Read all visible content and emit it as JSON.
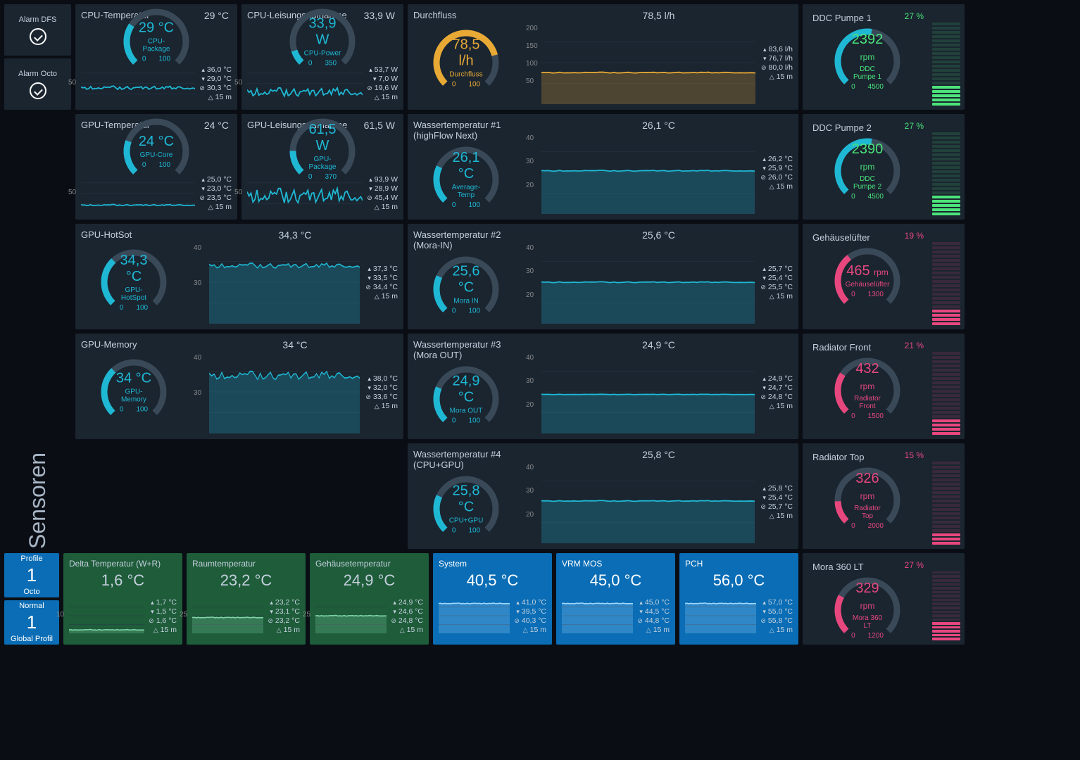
{
  "sidebar": {
    "title": "Sensoren",
    "alarms": [
      {
        "label": "Alarm DFS",
        "ok": true
      },
      {
        "label": "Alarm Octo",
        "ok": true
      }
    ]
  },
  "colors": {
    "cyan": "#1fb8d4",
    "cyan_dark": "#0d5c6b",
    "orange": "#e8a935",
    "green": "#4be37a",
    "pink": "#e8477e",
    "track": "#3a4958",
    "panel_bg": "#1a2530",
    "grid": "#2a3845"
  },
  "gauge": {
    "start_deg": 135,
    "sweep_deg": 270,
    "radius": 45,
    "stroke": 9
  },
  "panels": {
    "cpu_t": {
      "title": "CPU-Temperatur",
      "top": "29 °C",
      "gauge": {
        "value": "29 °C",
        "sub": "CPU-Package",
        "min": 0,
        "max": 100,
        "fill": 0.29,
        "color": "cyan"
      },
      "chart": {
        "ylabel": "50",
        "line_y": 0.6,
        "noise": 0.08,
        "color": "cyan"
      },
      "stats": {
        "max": "36,0 °C",
        "min": "29,0 °C",
        "avg": "30,3 °C",
        "time": "15 m"
      }
    },
    "cpu_p": {
      "title": "CPU-Leisungsaufnahme",
      "top": "33,9 W",
      "gauge": {
        "value": "33,9 W",
        "sub": "CPU-Power",
        "min": 0,
        "max": 350,
        "fill": 0.1,
        "color": "cyan"
      },
      "chart": {
        "ylabel": "50",
        "line_y": 0.7,
        "noise": 0.2,
        "color": "cyan"
      },
      "stats": {
        "max": "53,7 W",
        "min": "7,0 W",
        "avg": "19,6 W",
        "time": "15 m"
      }
    },
    "gpu_t": {
      "title": "GPU-Temperatur",
      "top": "24 °C",
      "gauge": {
        "value": "24 °C",
        "sub": "GPU-Core",
        "min": 0,
        "max": 100,
        "fill": 0.24,
        "color": "cyan"
      },
      "chart": {
        "ylabel": "50",
        "line_y": 0.78,
        "noise": 0.03,
        "color": "cyan"
      },
      "stats": {
        "max": "25,0 °C",
        "min": "23,0 °C",
        "avg": "23,5 °C",
        "time": "15 m"
      }
    },
    "gpu_p": {
      "title": "GPU-Leisungsaufnahme",
      "top": "61,5 W",
      "gauge": {
        "value": "61,5 W",
        "sub": "GPU-Package",
        "min": 0,
        "max": 370,
        "fill": 0.17,
        "color": "cyan"
      },
      "chart": {
        "ylabel": "50",
        "line_y": 0.55,
        "noise": 0.35,
        "color": "cyan"
      },
      "stats": {
        "max": "93,9 W",
        "min": "28,9 W",
        "avg": "45,4 W",
        "time": "15 m"
      }
    },
    "hotspot": {
      "title": "GPU-HotSot",
      "top": "34,3 °C",
      "gauge": {
        "value": "34,3 °C",
        "sub": "GPU-HotSpot",
        "min": 0,
        "max": 100,
        "fill": 0.34,
        "color": "cyan"
      },
      "chart": {
        "yticks": [
          "40",
          "30"
        ],
        "line_y": 0.3,
        "noise": 0.06,
        "color": "cyan",
        "area": true
      },
      "stats": {
        "max": "37,3 °C",
        "min": "33,5 °C",
        "avg": "34,4 °C",
        "time": "15 m"
      }
    },
    "memory": {
      "title": "GPU-Memory",
      "top": "34 °C",
      "gauge": {
        "value": "34 °C",
        "sub": "GPU-Memory",
        "min": 0,
        "max": 100,
        "fill": 0.34,
        "color": "cyan"
      },
      "chart": {
        "yticks": [
          "40",
          "30"
        ],
        "line_y": 0.3,
        "noise": 0.1,
        "color": "cyan",
        "area": true
      },
      "stats": {
        "max": "38,0 °C",
        "min": "32,0 °C",
        "avg": "33,6 °C",
        "time": "15 m"
      }
    },
    "flow": {
      "title": "Durchfluss",
      "top": "78,5 l/h",
      "gauge": {
        "value": "78,5 l/h",
        "sub": "Durchfluss",
        "min": 0,
        "max": 100,
        "fill": 0.78,
        "color": "orange",
        "value_color": "orange"
      },
      "chart": {
        "yticks": [
          "200",
          "150",
          "100",
          "50"
        ],
        "line_y": 0.62,
        "noise": 0.01,
        "color": "orange",
        "area": true
      },
      "stats": {
        "max": "83,6 l/h",
        "min": "76,7 l/h",
        "avg": "80,0 l/h",
        "time": "15 m"
      }
    },
    "wt1": {
      "title": "Wassertemperatur #1 (highFlow Next)",
      "top": "26,1 °C",
      "gauge": {
        "value": "26,1 °C",
        "sub": "Average-Temp",
        "min": 0,
        "max": 100,
        "fill": 0.26,
        "color": "cyan"
      },
      "chart": {
        "yticks": [
          "40",
          "30",
          "20"
        ],
        "line_y": 0.48,
        "noise": 0.01,
        "color": "cyan",
        "area": true
      },
      "stats": {
        "max": "26,2 °C",
        "min": "25,9 °C",
        "avg": "26,0 °C",
        "time": "15 m"
      }
    },
    "wt2": {
      "title": "Wassertemperatur #2 (Mora-IN)",
      "top": "25,6 °C",
      "gauge": {
        "value": "25,6 °C",
        "sub": "Mora IN",
        "min": 0,
        "max": 100,
        "fill": 0.26,
        "color": "cyan"
      },
      "chart": {
        "yticks": [
          "40",
          "30",
          "20"
        ],
        "line_y": 0.5,
        "noise": 0.01,
        "color": "cyan",
        "area": true
      },
      "stats": {
        "max": "25,7 °C",
        "min": "25,4 °C",
        "avg": "25,5 °C",
        "time": "15 m"
      }
    },
    "wt3": {
      "title": "Wassertemperatur #3 (Mora OUT)",
      "top": "24,9 °C",
      "gauge": {
        "value": "24,9 °C",
        "sub": "Mora OUT",
        "min": 0,
        "max": 100,
        "fill": 0.25,
        "color": "cyan"
      },
      "chart": {
        "yticks": [
          "40",
          "30",
          "20"
        ],
        "line_y": 0.53,
        "noise": 0.005,
        "color": "cyan",
        "area": true
      },
      "stats": {
        "max": "24,9 °C",
        "min": "24,7 °C",
        "avg": "24,8 °C",
        "time": "15 m"
      }
    },
    "wt4": {
      "title": "Wassertemperatur #4 (CPU+GPU)",
      "top": "25,8 °C",
      "gauge": {
        "value": "25,8 °C",
        "sub": "CPU+GPU",
        "min": 0,
        "max": 100,
        "fill": 0.26,
        "color": "cyan"
      },
      "chart": {
        "yticks": [
          "40",
          "30",
          "20"
        ],
        "line_y": 0.49,
        "noise": 0.01,
        "color": "cyan",
        "area": true
      },
      "stats": {
        "max": "25,8 °C",
        "min": "25,4 °C",
        "avg": "25,7 °C",
        "time": "15 m"
      }
    }
  },
  "fans": {
    "ddc1": {
      "title": "DDC Pumpe 1",
      "pct": "27 %",
      "gauge": {
        "value": "2392",
        "unit": "rpm",
        "sub": "DDC Pumpe 1",
        "min": 0,
        "max": 4500,
        "fill": 0.53,
        "color": "cyan",
        "value_color": "green"
      },
      "bars": {
        "count": 20,
        "lit": 5,
        "color": "green"
      }
    },
    "ddc2": {
      "title": "DDC Pumpe 2",
      "pct": "27 %",
      "gauge": {
        "value": "2390",
        "unit": "rpm",
        "sub": "DDC Pumpe 2",
        "min": 0,
        "max": 4500,
        "fill": 0.53,
        "color": "cyan",
        "value_color": "green"
      },
      "bars": {
        "count": 20,
        "lit": 5,
        "color": "green"
      }
    },
    "geh": {
      "title": "Gehäuselüfter",
      "pct": "19 %",
      "gauge": {
        "value": "465",
        "unit": "rpm",
        "sub": "Gehäuselüfter",
        "min": 0,
        "max": 1300,
        "fill": 0.36,
        "color": "pink",
        "value_color": "pink"
      },
      "bars": {
        "count": 20,
        "lit": 4,
        "color": "pink"
      }
    },
    "rf": {
      "title": "Radiator Front",
      "pct": "21 %",
      "gauge": {
        "value": "432",
        "unit": "rpm",
        "sub": "Radiator Front",
        "min": 0,
        "max": 1500,
        "fill": 0.29,
        "color": "pink",
        "value_color": "pink"
      },
      "bars": {
        "count": 20,
        "lit": 4,
        "color": "pink"
      }
    },
    "rt": {
      "title": "Radiator Top",
      "pct": "15 %",
      "gauge": {
        "value": "326",
        "unit": "rpm",
        "sub": "Radiator Top",
        "min": 0,
        "max": 2000,
        "fill": 0.16,
        "color": "pink",
        "value_color": "pink"
      },
      "bars": {
        "count": 20,
        "lit": 3,
        "color": "pink"
      }
    },
    "mora": {
      "title": "Mora 360 LT",
      "pct": "27 %",
      "gauge": {
        "value": "329",
        "unit": "rpm",
        "sub": "Mora 360 LT",
        "min": 0,
        "max": 1200,
        "fill": 0.27,
        "color": "pink",
        "value_color": "pink"
      },
      "bars": {
        "count": 18,
        "lit": 5,
        "color": "pink"
      }
    }
  },
  "profiles": [
    {
      "label": "Profile",
      "value": "1",
      "sub": "Octo"
    },
    {
      "label": "Normal",
      "value": "1",
      "sub": "Global Profil"
    }
  ],
  "bottom": {
    "delta": {
      "title": "Delta Temperatur (W+R)",
      "val": "1,6 °C",
      "stats": {
        "max": "1,7 °C",
        "min": "1,5 °C",
        "avg": "1,6 °C",
        "time": "15 m"
      },
      "chart": {
        "ylabel": "10",
        "line_y": 0.9
      }
    },
    "raum": {
      "title": "Raumtemperatur",
      "val": "23,2 °C",
      "stats": {
        "max": "23,2 °C",
        "min": "23,1 °C",
        "avg": "23,2 °C",
        "time": "15 m"
      },
      "chart": {
        "ylabel": "25",
        "line_y": 0.55
      }
    },
    "geh": {
      "title": "Gehäusetemperatur",
      "val": "24,9 °C",
      "stats": {
        "max": "24,9 °C",
        "min": "24,6 °C",
        "avg": "24,8 °C",
        "time": "15 m"
      },
      "chart": {
        "ylabel": "25",
        "line_y": 0.5
      }
    },
    "sys": {
      "title": "System",
      "val": "40,5 °C",
      "stats": {
        "max": "41,0 °C",
        "min": "39,5 °C",
        "avg": "40,3 °C",
        "time": "15 m"
      }
    },
    "vrm": {
      "title": "VRM MOS",
      "val": "45,0 °C",
      "stats": {
        "max": "45,0 °C",
        "min": "44,5 °C",
        "avg": "44,8 °C",
        "time": "15 m"
      }
    },
    "pch": {
      "title": "PCH",
      "val": "56,0 °C",
      "stats": {
        "max": "57,0 °C",
        "min": "55,0 °C",
        "avg": "55,8 °C",
        "time": "15 m"
      }
    }
  }
}
